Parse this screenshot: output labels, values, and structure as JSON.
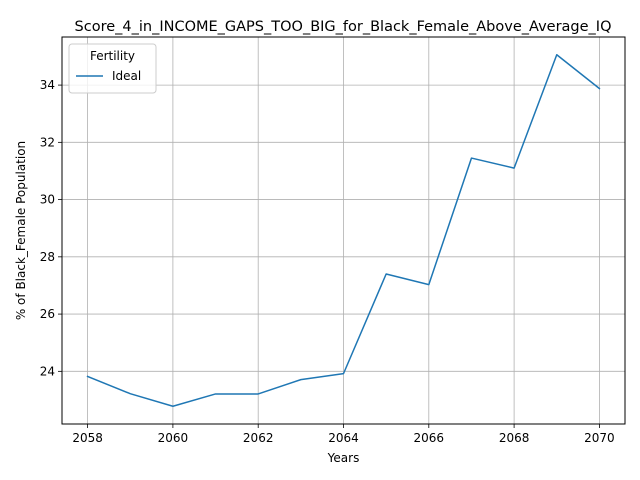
{
  "chart_data": {
    "type": "line",
    "title": "Score_4_in_INCOME_GAPS_TOO_BIG_for_Black_Female_Above_Average_IQ",
    "xlabel": "Years",
    "ylabel": "% of Black_Female Population",
    "x": [
      2058,
      2059,
      2060,
      2061,
      2062,
      2063,
      2064,
      2065,
      2066,
      2067,
      2068,
      2069,
      2070
    ],
    "series": [
      {
        "name": "Ideal",
        "color": "#1f77b4",
        "values": [
          23.82,
          23.22,
          22.78,
          23.21,
          23.21,
          23.71,
          23.92,
          27.4,
          27.03,
          31.45,
          31.1,
          35.06,
          33.88
        ]
      }
    ],
    "xlim": [
      2057.4,
      2070.6
    ],
    "ylim": [
      22.16,
      35.68
    ],
    "xticks": [
      2058,
      2060,
      2062,
      2064,
      2066,
      2068,
      2070
    ],
    "yticks": [
      24,
      26,
      28,
      30,
      32,
      34
    ],
    "grid": true,
    "legend": {
      "title": "Fertility",
      "placement": "top-left"
    }
  }
}
